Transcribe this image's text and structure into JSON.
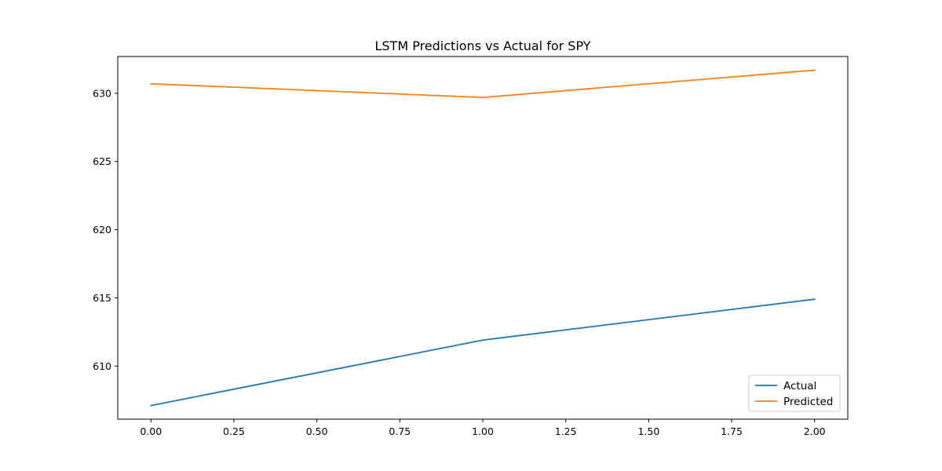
{
  "chart_data": {
    "type": "line",
    "title": "LSTM Predictions vs Actual for SPY",
    "xlabel": "",
    "ylabel": "",
    "x": [
      0,
      1,
      2
    ],
    "series": [
      {
        "name": "Actual",
        "color": "#1f77b4",
        "values": [
          607.1,
          611.9,
          614.9
        ]
      },
      {
        "name": "Predicted",
        "color": "#ff7f0e",
        "values": [
          630.7,
          629.7,
          631.7
        ]
      }
    ],
    "xlim": [
      -0.1,
      2.1
    ],
    "ylim": [
      606.1,
      632.7
    ],
    "xticks": [
      0,
      0.25,
      0.5,
      0.75,
      1,
      1.25,
      1.5,
      1.75,
      2
    ],
    "xtick_labels": [
      "0.00",
      "0.25",
      "0.50",
      "0.75",
      "1.00",
      "1.25",
      "1.50",
      "1.75",
      "2.00"
    ],
    "yticks": [
      610,
      615,
      620,
      625,
      630
    ],
    "ytick_labels": [
      "610",
      "615",
      "620",
      "625",
      "630"
    ],
    "grid": false,
    "legend_position": "bottom-right"
  }
}
